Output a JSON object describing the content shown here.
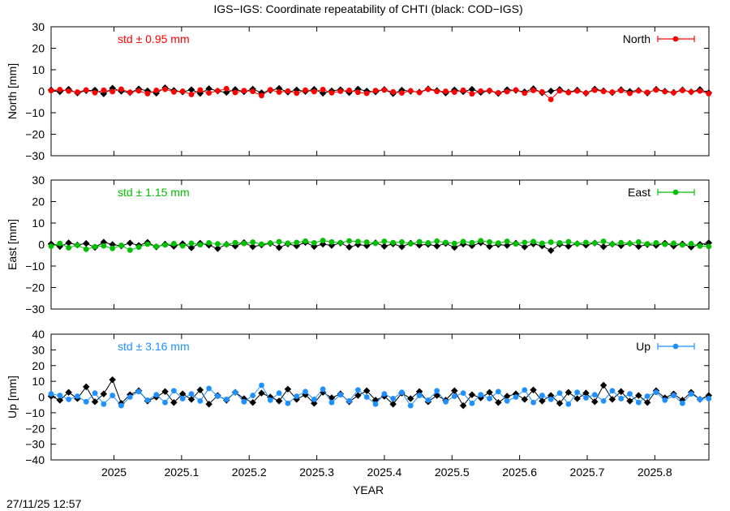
{
  "title": "IGS−IGS: Coordinate repeatability of CHTI (black: COD−IGS)",
  "timestamp": "27/11/25 12:57",
  "chart_data": [
    {
      "type": "scatter",
      "ylabel": "North [mm]",
      "ylim": [
        -30,
        30
      ],
      "yticks": [
        "30",
        "20",
        "10",
        "0",
        "−10",
        "−20",
        "−30"
      ],
      "ytick_values": [
        30,
        20,
        10,
        0,
        -10,
        -20,
        -30
      ],
      "legend": "North",
      "legend_placement": "top-right",
      "std_label": "std ± 0.95 mm",
      "color": "#ff0000",
      "series": [
        {
          "name": "North",
          "color": "#ff0000",
          "values": [
            0.3,
            0.8,
            0.1,
            -0.4,
            0.6,
            -0.7,
            0.5,
            -0.2,
            1.0,
            -0.5,
            0.2,
            -1.1,
            0.4,
            0.9,
            -0.3,
            0.0,
            -1.5,
            0.6,
            -0.8,
            0.2,
            1.2,
            -0.6,
            0.3,
            -0.1,
            -2.0,
            0.7,
            -0.4,
            0.1,
            -0.9,
            0.5,
            -0.2,
            0.8,
            -0.7,
            0.0,
            0.4,
            -0.5,
            -1.0,
            0.3,
            0.6,
            -0.3,
            -0.8,
            0.2,
            -0.6,
            0.9,
            -0.1,
            0.0,
            -0.4,
            0.5,
            -1.2,
            0.1,
            0.3,
            -0.7,
            -0.2,
            0.6,
            -0.9,
            0.4,
            -0.3,
            -3.8,
            0.2,
            -0.6,
            0.1,
            -0.8,
            0.5,
            -0.1,
            -0.4,
            0.3,
            -1.0,
            0.2,
            -0.5,
            0.6,
            -0.2,
            -0.7,
            0.4,
            -0.3,
            0.1,
            -1.1
          ]
        },
        {
          "name": "COD−IGS",
          "color": "#000000",
          "values": [
            0.6,
            -0.2,
            0.9,
            -0.8,
            0.3,
            0.5,
            -1.2,
            1.4,
            0.0,
            -0.6,
            1.1,
            0.2,
            -0.9,
            1.6,
            0.4,
            -0.3,
            0.7,
            -1.0,
            1.2,
            0.1,
            -0.5,
            0.8,
            -0.2,
            1.0,
            -0.7,
            0.4,
            1.3,
            -0.4,
            0.6,
            -0.1,
            0.9,
            -0.9,
            0.2,
            0.7,
            -0.6,
            1.0,
            0.1,
            -0.3,
            0.8,
            -1.1,
            0.5,
            0.0,
            -0.4,
            1.1,
            0.3,
            -0.8,
            0.6,
            -0.2,
            0.9,
            -0.5,
            0.2,
            -1.0,
            0.7,
            0.4,
            -0.3,
            1.2,
            -0.7,
            0.1,
            0.8,
            -0.4,
            0.5,
            -0.9,
            1.0,
            0.2,
            -0.6,
            0.7,
            -0.1,
            0.4,
            -0.8,
            0.9,
            0.0,
            -0.5,
            0.6,
            -0.3,
            0.8,
            -0.7
          ]
        }
      ]
    },
    {
      "type": "scatter",
      "ylabel": "East [mm]",
      "ylim": [
        -30,
        30
      ],
      "yticks": [
        "30",
        "20",
        "10",
        "0",
        "−10",
        "−20",
        "−30"
      ],
      "ytick_values": [
        30,
        20,
        10,
        0,
        -10,
        -20,
        -30
      ],
      "legend": "East",
      "legend_placement": "top-right",
      "std_label": "std ± 1.15 mm",
      "color": "#00c000",
      "series": [
        {
          "name": "East",
          "color": "#00c000",
          "values": [
            -0.8,
            0.5,
            -1.5,
            -0.3,
            -2.2,
            -1.0,
            -0.6,
            -1.8,
            -0.4,
            -2.6,
            -1.2,
            0.2,
            -0.9,
            -0.2,
            0.4,
            -0.6,
            0.6,
            -0.1,
            0.8,
            0.3,
            0.0,
            0.9,
            0.5,
            1.1,
            0.2,
            0.7,
            1.3,
            0.6,
            1.0,
            1.6,
            0.8,
            1.9,
            1.2,
            0.9,
            1.7,
            1.4,
            1.1,
            0.6,
            1.5,
            0.9,
            1.2,
            0.4,
            1.3,
            0.8,
            1.6,
            1.0,
            0.5,
            1.4,
            0.9,
            1.8,
            1.2,
            0.7,
            1.5,
            0.3,
            1.0,
            1.4,
            0.6,
            1.1,
            0.8,
            1.3,
            0.4,
            1.0,
            0.7,
            1.5,
            0.2,
            0.9,
            0.5,
            1.2,
            0.3,
            0.8,
            0.1,
            0.6,
            -0.2,
            0.4,
            -0.7,
            -0.9
          ]
        },
        {
          "name": "COD−IGS",
          "color": "#000000",
          "values": [
            0.3,
            -0.9,
            0.8,
            -0.2,
            0.5,
            -1.3,
            1.1,
            0.0,
            -0.6,
            0.7,
            -0.4,
            1.0,
            -1.1,
            0.2,
            -0.8,
            0.4,
            -1.5,
            0.6,
            -0.3,
            -1.9,
            0.1,
            -0.7,
            0.9,
            -1.0,
            -0.2,
            0.5,
            -1.4,
            0.3,
            -0.6,
            1.0,
            -0.9,
            0.2,
            -0.4,
            0.7,
            -1.2,
            0.0,
            -0.5,
            0.8,
            -0.8,
            0.3,
            -1.0,
            0.6,
            -0.3,
            0.1,
            -0.7,
            0.5,
            -1.3,
            0.2,
            -0.5,
            0.8,
            -0.9,
            0.0,
            -0.4,
            0.6,
            -1.1,
            0.3,
            -0.6,
            -2.8,
            0.1,
            -0.8,
            0.4,
            -0.3,
            0.7,
            -1.0,
            0.2,
            -0.5,
            0.5,
            -0.9,
            0.0,
            -0.4,
            0.6,
            -0.7,
            0.3,
            -1.2,
            0.1,
            0.8
          ]
        }
      ]
    },
    {
      "type": "scatter",
      "ylabel": "Up [mm]",
      "ylim": [
        -40,
        40
      ],
      "yticks": [
        "40",
        "30",
        "20",
        "10",
        "0",
        "−10",
        "−20",
        "−30",
        "−40"
      ],
      "ytick_values": [
        40,
        30,
        20,
        10,
        0,
        -10,
        -20,
        -30,
        -40
      ],
      "legend": "Up",
      "legend_placement": "top-right",
      "std_label": "std ± 3.16 mm",
      "color": "#1e90ff",
      "series": [
        {
          "name": "Up",
          "color": "#1e90ff",
          "values": [
            2.0,
            1.0,
            -1.5,
            0.5,
            -3.0,
            2.5,
            -4.5,
            1.0,
            -5.5,
            0.0,
            3.5,
            -2.0,
            1.5,
            -3.5,
            4.0,
            -1.0,
            2.0,
            -2.5,
            5.5,
            0.5,
            -1.5,
            3.0,
            -3.0,
            1.0,
            7.5,
            -2.0,
            2.5,
            -4.0,
            0.5,
            3.5,
            -1.5,
            5.0,
            -3.5,
            1.5,
            -2.5,
            4.5,
            0.0,
            -4.5,
            2.0,
            -1.0,
            3.0,
            -5.5,
            1.0,
            -2.0,
            4.0,
            -3.0,
            0.5,
            2.5,
            -4.0,
            1.5,
            -1.0,
            3.5,
            -2.5,
            0.0,
            4.5,
            -3.5,
            1.0,
            -1.5,
            2.5,
            -4.5,
            3.0,
            -0.5,
            1.5,
            -2.5,
            4.0,
            -1.0,
            2.0,
            -3.5,
            0.5,
            3.0,
            -2.0,
            1.0,
            -4.0,
            2.0,
            -1.5,
            -1.0
          ]
        },
        {
          "name": "COD−IGS",
          "color": "#000000",
          "values": [
            0.5,
            -2.0,
            3.0,
            -1.0,
            6.5,
            -3.0,
            2.0,
            11.0,
            -4.0,
            1.5,
            4.0,
            -2.5,
            0.0,
            3.5,
            -3.5,
            2.0,
            -1.5,
            4.5,
            -4.5,
            1.0,
            -2.0,
            3.0,
            -1.0,
            -3.5,
            2.5,
            0.0,
            -2.5,
            5.0,
            -1.5,
            1.5,
            -4.0,
            3.0,
            -0.5,
            2.0,
            -3.0,
            1.0,
            4.0,
            -2.0,
            0.5,
            -4.5,
            2.5,
            -1.0,
            3.5,
            -3.0,
            1.0,
            -2.0,
            4.0,
            -5.5,
            1.5,
            -0.5,
            3.0,
            -3.5,
            0.5,
            2.0,
            -1.5,
            4.5,
            -2.5,
            1.0,
            -4.0,
            3.0,
            -1.0,
            2.5,
            -3.0,
            7.5,
            -1.5,
            3.5,
            -2.5,
            1.0,
            -3.5,
            4.0,
            -0.5,
            2.0,
            -2.0,
            3.0,
            -1.5,
            1.0
          ]
        }
      ]
    }
  ],
  "x_axis": {
    "xlabel": "YEAR",
    "xlim": [
      2024.907,
      2025.88
    ],
    "xticks": [
      "2025",
      "2025.1",
      "2025.2",
      "2025.3",
      "2025.4",
      "2025.5",
      "2025.6",
      "2025.7",
      "2025.8"
    ],
    "xtick_values": [
      2025.0,
      2025.1,
      2025.2,
      2025.3,
      2025.4,
      2025.5,
      2025.6,
      2025.7,
      2025.8
    ],
    "sample_spacing_years": 0.01297
  }
}
